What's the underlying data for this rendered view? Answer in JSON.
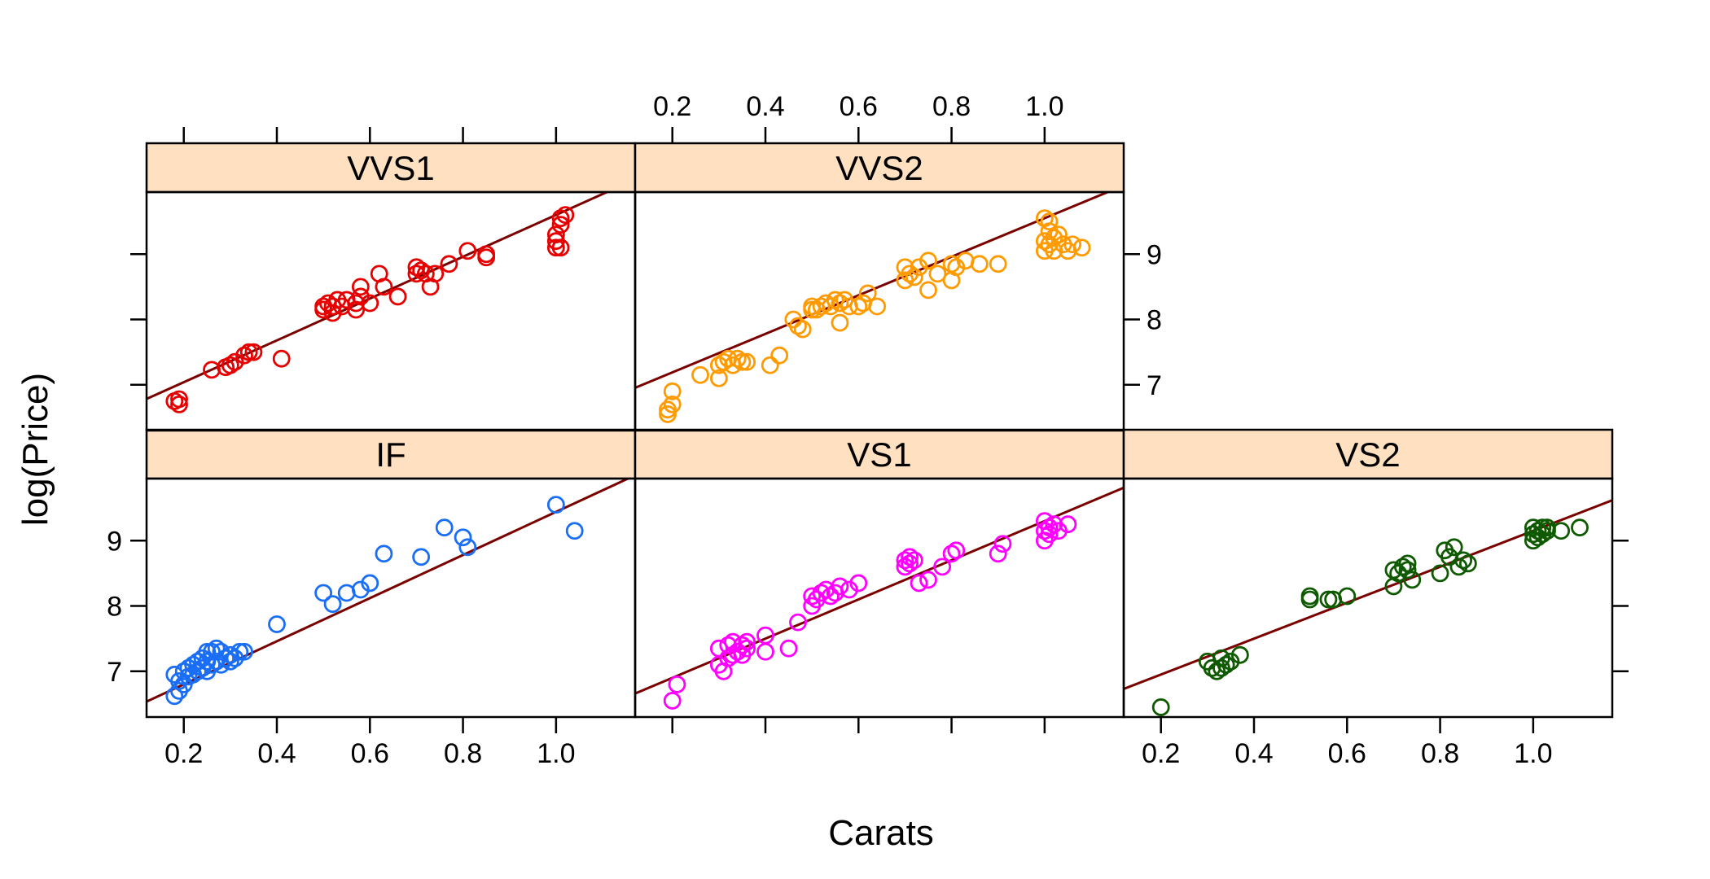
{
  "chart_data": {
    "type": "scatter",
    "layout": "lattice 3 columns x 2 rows, top-right cell empty",
    "xlabel": "Carats",
    "ylabel": "log(Price)",
    "xlim": [
      0.12,
      1.17
    ],
    "ylim": [
      6.3,
      9.95
    ],
    "x_ticks": [
      0.2,
      0.4,
      0.6,
      0.8,
      1.0
    ],
    "x_tick_labels": [
      "0.2",
      "0.4",
      "0.6",
      "0.8",
      "1.0"
    ],
    "y_ticks": [
      7,
      8,
      9
    ],
    "y_tick_labels": [
      "7",
      "8",
      "9"
    ],
    "strip_color": "#ffe0c0",
    "fit_line_color": "#7a0000",
    "panels": [
      {
        "name": "IF",
        "row": 0,
        "col": 0,
        "color": "#1a6ef5",
        "fit": {
          "intercept": 6.14,
          "slope": 3.3
        },
        "x": [
          0.18,
          0.18,
          0.19,
          0.19,
          0.2,
          0.2,
          0.21,
          0.21,
          0.22,
          0.22,
          0.23,
          0.23,
          0.24,
          0.24,
          0.25,
          0.25,
          0.25,
          0.26,
          0.26,
          0.27,
          0.27,
          0.28,
          0.28,
          0.29,
          0.3,
          0.3,
          0.31,
          0.32,
          0.33,
          0.4,
          0.5,
          0.52,
          0.55,
          0.58,
          0.6,
          0.63,
          0.71,
          0.76,
          0.8,
          0.81,
          1.0,
          1.04
        ],
        "y": [
          6.62,
          6.95,
          6.7,
          6.85,
          6.8,
          7.0,
          6.92,
          7.05,
          6.95,
          7.1,
          7.0,
          7.15,
          7.05,
          7.2,
          7.0,
          7.15,
          7.3,
          7.1,
          7.3,
          7.15,
          7.35,
          7.1,
          7.3,
          7.2,
          7.15,
          7.25,
          7.2,
          7.3,
          7.3,
          7.72,
          8.2,
          8.03,
          8.2,
          8.25,
          8.35,
          8.8,
          8.75,
          9.2,
          9.05,
          8.9,
          9.55,
          9.15
        ]
      },
      {
        "name": "VS1",
        "row": 0,
        "col": 1,
        "color": "#ff00ff",
        "fit": {
          "intercept": 6.3,
          "slope": 3.0
        },
        "x": [
          0.2,
          0.21,
          0.3,
          0.3,
          0.31,
          0.32,
          0.32,
          0.33,
          0.33,
          0.34,
          0.35,
          0.35,
          0.36,
          0.36,
          0.4,
          0.4,
          0.45,
          0.47,
          0.5,
          0.5,
          0.51,
          0.52,
          0.53,
          0.54,
          0.55,
          0.56,
          0.58,
          0.6,
          0.7,
          0.7,
          0.71,
          0.71,
          0.72,
          0.73,
          0.75,
          0.78,
          0.8,
          0.81,
          0.9,
          0.91,
          1.0,
          1.0,
          1.0,
          1.01,
          1.01,
          1.02,
          1.03,
          1.05
        ],
        "y": [
          6.55,
          6.8,
          7.1,
          7.35,
          7.0,
          7.2,
          7.4,
          7.25,
          7.45,
          7.3,
          7.4,
          7.25,
          7.35,
          7.45,
          7.55,
          7.3,
          7.35,
          7.75,
          8.0,
          8.15,
          8.1,
          8.2,
          8.25,
          8.15,
          8.2,
          8.3,
          8.25,
          8.35,
          8.6,
          8.7,
          8.65,
          8.75,
          8.7,
          8.35,
          8.4,
          8.6,
          8.8,
          8.85,
          8.8,
          8.95,
          9.0,
          9.15,
          9.3,
          9.2,
          9.1,
          9.25,
          9.15,
          9.25
        ]
      },
      {
        "name": "VS2",
        "row": 0,
        "col": 2,
        "color": "#0f5a00",
        "fit": {
          "intercept": 6.4,
          "slope": 2.75
        },
        "x": [
          0.2,
          0.3,
          0.31,
          0.32,
          0.33,
          0.33,
          0.34,
          0.35,
          0.37,
          0.52,
          0.52,
          0.56,
          0.57,
          0.6,
          0.7,
          0.7,
          0.71,
          0.72,
          0.73,
          0.73,
          0.74,
          0.8,
          0.81,
          0.82,
          0.83,
          0.84,
          0.85,
          0.86,
          1.0,
          1.0,
          1.0,
          1.01,
          1.01,
          1.02,
          1.02,
          1.03,
          1.03,
          1.06,
          1.1
        ],
        "y": [
          6.45,
          7.15,
          7.05,
          7.0,
          7.2,
          7.05,
          7.1,
          7.15,
          7.25,
          8.15,
          8.1,
          8.1,
          8.1,
          8.15,
          8.3,
          8.55,
          8.5,
          8.6,
          8.55,
          8.65,
          8.4,
          8.5,
          8.85,
          8.75,
          8.9,
          8.6,
          8.7,
          8.65,
          9.0,
          9.1,
          9.2,
          9.15,
          9.05,
          9.2,
          9.1,
          9.15,
          9.2,
          9.15,
          9.2
        ]
      },
      {
        "name": "VVS1",
        "row": 1,
        "col": 0,
        "color": "#e60000",
        "fit": {
          "intercept": 6.4,
          "slope": 3.2
        },
        "x": [
          0.18,
          0.19,
          0.19,
          0.26,
          0.29,
          0.3,
          0.31,
          0.33,
          0.34,
          0.35,
          0.41,
          0.5,
          0.5,
          0.51,
          0.52,
          0.52,
          0.53,
          0.54,
          0.55,
          0.57,
          0.57,
          0.58,
          0.58,
          0.6,
          0.62,
          0.63,
          0.66,
          0.7,
          0.7,
          0.71,
          0.72,
          0.73,
          0.74,
          0.77,
          0.81,
          0.85,
          0.85,
          1.0,
          1.0,
          1.0,
          1.01,
          1.01,
          1.01,
          1.02
        ],
        "y": [
          6.75,
          6.7,
          6.78,
          7.23,
          7.27,
          7.3,
          7.35,
          7.45,
          7.5,
          7.5,
          7.4,
          8.15,
          8.2,
          8.25,
          8.1,
          8.2,
          8.3,
          8.2,
          8.3,
          8.15,
          8.25,
          8.35,
          8.5,
          8.25,
          8.7,
          8.5,
          8.35,
          8.7,
          8.8,
          8.75,
          8.7,
          8.5,
          8.7,
          8.85,
          9.05,
          8.95,
          9.0,
          9.1,
          9.2,
          9.3,
          9.45,
          9.55,
          9.1,
          9.6
        ]
      },
      {
        "name": "VVS2",
        "row": 1,
        "col": 1,
        "color": "#ff9a00",
        "fit": {
          "intercept": 6.6,
          "slope": 2.95
        },
        "x": [
          0.19,
          0.19,
          0.2,
          0.2,
          0.26,
          0.3,
          0.3,
          0.31,
          0.32,
          0.33,
          0.34,
          0.35,
          0.36,
          0.41,
          0.43,
          0.46,
          0.47,
          0.48,
          0.5,
          0.5,
          0.51,
          0.52,
          0.53,
          0.54,
          0.55,
          0.56,
          0.56,
          0.57,
          0.58,
          0.6,
          0.61,
          0.62,
          0.64,
          0.7,
          0.7,
          0.71,
          0.72,
          0.73,
          0.75,
          0.75,
          0.77,
          0.8,
          0.8,
          0.81,
          0.83,
          0.86,
          0.9,
          1.0,
          1.0,
          1.0,
          1.01,
          1.01,
          1.01,
          1.02,
          1.02,
          1.03,
          1.04,
          1.05,
          1.06,
          1.08
        ],
        "y": [
          6.55,
          6.62,
          6.7,
          6.9,
          7.15,
          7.3,
          7.1,
          7.35,
          7.4,
          7.3,
          7.4,
          7.35,
          7.35,
          7.3,
          7.45,
          8.0,
          7.9,
          7.85,
          8.15,
          8.2,
          8.15,
          8.2,
          8.25,
          8.2,
          8.3,
          8.25,
          7.95,
          8.3,
          8.2,
          8.2,
          8.25,
          8.4,
          8.2,
          8.6,
          8.8,
          8.7,
          8.65,
          8.8,
          8.9,
          8.45,
          8.7,
          8.85,
          8.6,
          8.8,
          8.9,
          8.85,
          8.85,
          9.05,
          9.2,
          9.55,
          9.35,
          9.15,
          9.5,
          9.25,
          9.05,
          9.3,
          9.15,
          9.05,
          9.15,
          9.1
        ]
      }
    ]
  }
}
